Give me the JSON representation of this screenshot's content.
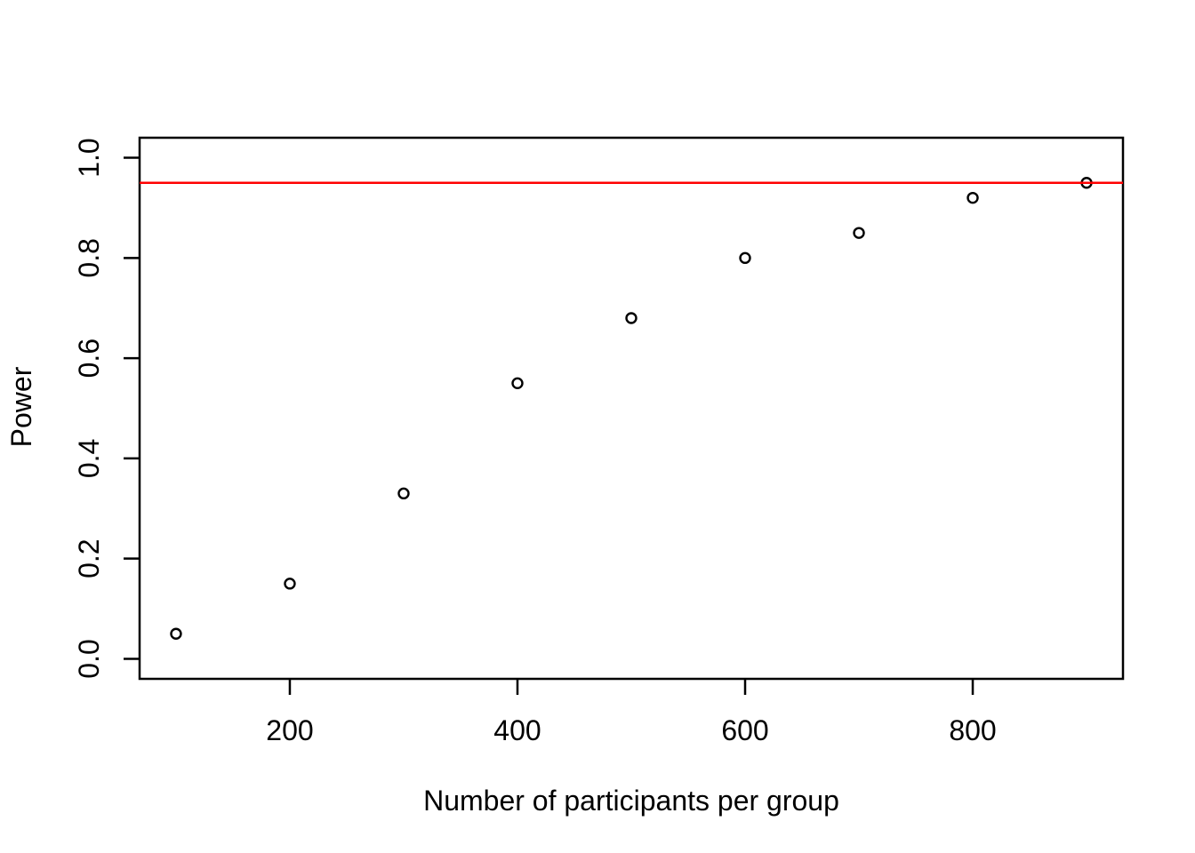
{
  "figure": {
    "background_color": "#FFFFFF",
    "foreground_color": "#000000"
  },
  "chart_data": {
    "type": "scatter",
    "title": "",
    "xlabel": "Number of participants per group",
    "ylabel": "Power",
    "x": [
      100,
      200,
      300,
      400,
      500,
      600,
      700,
      800,
      900
    ],
    "y": [
      0.05,
      0.15,
      0.33,
      0.55,
      0.68,
      0.8,
      0.85,
      0.92,
      0.95
    ],
    "xlim": [
      100,
      900
    ],
    "ylim": [
      0.0,
      1.0
    ],
    "x_ticks": [
      200,
      400,
      600,
      800
    ],
    "x_tick_labels": [
      "200",
      "400",
      "600",
      "800"
    ],
    "y_ticks": [
      0.0,
      0.2,
      0.4,
      0.6,
      0.8,
      1.0
    ],
    "y_tick_labels": [
      "0.0",
      "0.2",
      "0.4",
      "0.6",
      "0.8",
      "1.0"
    ],
    "grid": false,
    "legend": null,
    "hline": {
      "y": 0.95,
      "color": "#FF0000"
    },
    "point_style": {
      "marker": "open-circle",
      "color": "#000000"
    }
  }
}
